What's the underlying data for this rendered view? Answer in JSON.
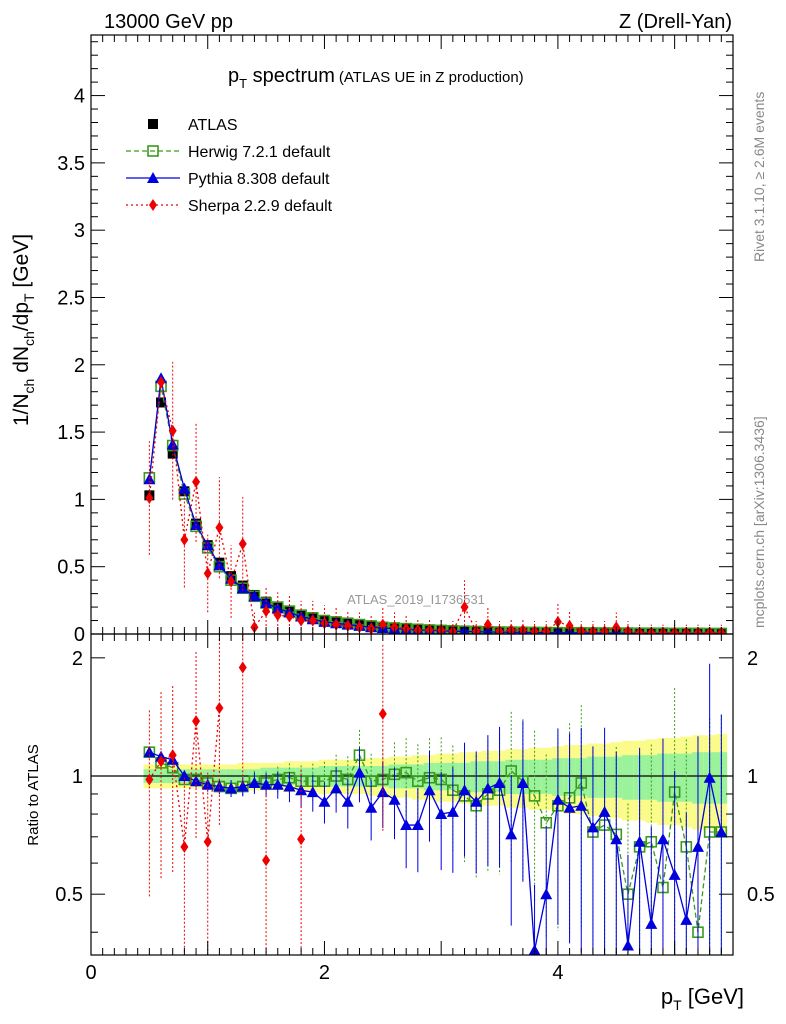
{
  "header": {
    "left": "13000 GeV pp",
    "right": "Z (Drell-Yan)"
  },
  "main_title": {
    "symbol": "p",
    "sub": "T",
    "text": " spectrum",
    "small": "(ATLAS UE in Z production)"
  },
  "side_labels": {
    "rivet": "Rivet 3.1.10, ≥ 2.6M events",
    "mcplots": "mcplots.cern.ch [arXiv:1306.3436]"
  },
  "watermark": "ATLAS_2019_I1736531",
  "colors": {
    "atlas": "#000000",
    "herwig": "#3a9a1e",
    "pythia": "#0000dd",
    "sherpa": "#ee0000",
    "band_inner": "#9af29a",
    "band_outer": "#fbfb8a"
  },
  "chart_data": [
    {
      "type": "scatter",
      "panel": "main",
      "ylabel_parts": [
        "1/N",
        "ch",
        " dN",
        "ch",
        "/dp",
        "T",
        " [GeV]"
      ],
      "xlim": [
        0,
        5.5
      ],
      "ylim": [
        0,
        4.45
      ],
      "yticks": [
        "0",
        "0.5",
        "1",
        "1.5",
        "2",
        "2.5",
        "3",
        "3.5",
        "4"
      ],
      "legend": {
        "placement": "top-left",
        "entries": [
          {
            "key": "atlas",
            "label": "ATLAS"
          },
          {
            "key": "herwig",
            "label": "Herwig 7.2.1 default"
          },
          {
            "key": "pythia",
            "label": "Pythia 8.308 default"
          },
          {
            "key": "sherpa",
            "label": "Sherpa 2.2.9 default"
          }
        ]
      },
      "x": [
        0.5,
        0.6,
        0.7,
        0.8,
        0.9,
        1.0,
        1.1,
        1.2,
        1.3,
        1.4,
        1.5,
        1.6,
        1.7,
        1.8,
        1.9,
        2.0,
        2.1,
        2.2,
        2.3,
        2.4,
        2.5,
        2.6,
        2.7,
        2.8,
        2.9,
        3.0,
        3.1,
        3.2,
        3.3,
        3.4,
        3.5,
        3.6,
        3.7,
        3.8,
        3.9,
        4.0,
        4.1,
        4.2,
        4.3,
        4.4,
        4.5,
        4.6,
        4.7,
        4.8,
        4.9,
        5.0,
        5.1,
        5.2,
        5.3,
        5.4
      ],
      "series": [
        {
          "key": "atlas",
          "name": "ATLAS",
          "marker": "square-filled",
          "values": [
            1.03,
            1.72,
            1.34,
            1.06,
            0.82,
            0.66,
            0.53,
            0.43,
            0.36,
            0.29,
            0.24,
            0.2,
            0.17,
            0.14,
            0.12,
            0.1,
            0.09,
            0.08,
            0.07,
            0.06,
            0.05,
            0.045,
            0.04,
            0.035,
            0.03,
            0.028,
            0.025,
            0.022,
            0.02,
            0.018,
            0.016,
            0.015,
            0.014,
            0.013,
            0.012,
            0.011,
            0.01,
            0.01,
            0.009,
            0.009,
            0.008,
            0.008,
            0.007,
            0.007,
            0.007,
            0.006,
            0.006,
            0.006,
            0.005,
            0.005
          ]
        },
        {
          "key": "herwig",
          "name": "Herwig 7.2.1 default",
          "marker": "square-open",
          "values": [
            1.16,
            1.84,
            1.4,
            1.04,
            0.8,
            0.64,
            0.5,
            0.4,
            0.34,
            0.28,
            0.23,
            0.2,
            0.17,
            0.14,
            0.12,
            0.1,
            0.09,
            0.08,
            0.07,
            0.06,
            0.05,
            0.045,
            0.04,
            0.035,
            0.03,
            0.027,
            0.024,
            0.021,
            0.019,
            0.017,
            0.015,
            0.014,
            0.013,
            0.012,
            0.011,
            0.01,
            0.009,
            0.009,
            0.008,
            0.008,
            0.007,
            0.007,
            0.006,
            0.006,
            0.006,
            0.005,
            0.005,
            0.005,
            0.004,
            0.004
          ]
        },
        {
          "key": "pythia",
          "name": "Pythia 8.308 default",
          "marker": "triangle",
          "values": [
            1.15,
            1.9,
            1.41,
            1.08,
            0.81,
            0.66,
            0.51,
            0.41,
            0.34,
            0.28,
            0.23,
            0.19,
            0.16,
            0.13,
            0.11,
            0.09,
            0.08,
            0.07,
            0.06,
            0.05,
            0.045,
            0.04,
            0.035,
            0.03,
            0.027,
            0.024,
            0.021,
            0.019,
            0.017,
            0.015,
            0.014,
            0.013,
            0.012,
            0.011,
            0.01,
            0.009,
            0.009,
            0.008,
            0.007,
            0.007,
            0.006,
            0.006,
            0.005,
            0.005,
            0.005,
            0.005,
            0.004,
            0.004,
            0.004,
            0.004
          ]
        },
        {
          "key": "sherpa",
          "name": "Sherpa 2.2.9 default",
          "marker": "diamond",
          "values": [
            1.01,
            1.87,
            1.51,
            0.7,
            1.13,
            0.45,
            0.79,
            0.39,
            0.67,
            0.05,
            0.17,
            0.14,
            0.13,
            0.1,
            0.1,
            0.08,
            0.07,
            0.06,
            0.05,
            0.04,
            0.07,
            0.05,
            0.04,
            0.03,
            0.03,
            0.03,
            0.02,
            0.2,
            0.02,
            0.07,
            0.02,
            0.03,
            0.03,
            0.02,
            0.02,
            0.09,
            0.06,
            0.02,
            0.02,
            0.02,
            0.05,
            0.02,
            0.01,
            0.01,
            0.01,
            0.01,
            0.01,
            0.01,
            0.01,
            0.01
          ]
        }
      ]
    },
    {
      "type": "scatter",
      "panel": "ratio",
      "ylabel": "Ratio to ATLAS",
      "xlabel_parts": [
        "p",
        "T",
        " [GeV]"
      ],
      "xlim": [
        0,
        5.5
      ],
      "ylim": [
        0.35,
        2.3
      ],
      "yscale": "log",
      "xticks": [
        "0",
        "2",
        "4"
      ],
      "yticks": [
        "0.5",
        "1",
        "2"
      ],
      "reference_line": 1,
      "series": [
        {
          "key": "herwig",
          "name": "Herwig 7.2.1 default",
          "values": [
            1.15,
            1.08,
            1.05,
            0.98,
            0.98,
            0.96,
            0.94,
            0.93,
            0.94,
            0.97,
            0.96,
            0.98,
            0.99,
            0.97,
            0.97,
            0.97,
            1.0,
            0.98,
            1.13,
            0.97,
            0.98,
            1.01,
            1.02,
            0.97,
            0.99,
            0.98,
            0.92,
            0.89,
            0.84,
            0.9,
            0.92,
            1.03,
            0.97,
            0.89,
            0.76,
            0.84,
            0.88,
            0.96,
            0.72,
            0.75,
            0.71,
            0.5,
            0.66,
            0.68,
            0.52,
            0.91,
            0.66,
            0.4,
            0.72,
            0.72
          ]
        },
        {
          "key": "pythia",
          "name": "Pythia 8.308 default",
          "values": [
            1.15,
            1.12,
            1.1,
            1.0,
            0.97,
            0.95,
            0.94,
            0.93,
            0.94,
            0.96,
            0.95,
            0.95,
            0.94,
            0.92,
            0.91,
            0.86,
            0.93,
            0.86,
            1.02,
            0.83,
            0.91,
            0.87,
            0.75,
            0.75,
            0.92,
            0.8,
            0.81,
            0.92,
            0.86,
            0.93,
            0.96,
            0.71,
            0.96,
            0.36,
            0.5,
            0.87,
            0.83,
            0.84,
            0.74,
            0.81,
            0.69,
            0.37,
            0.68,
            0.42,
            0.69,
            0.56,
            0.43,
            0.66,
            0.99,
            0.72
          ]
        },
        {
          "key": "sherpa",
          "name": "Sherpa 2.2.9 default",
          "values": [
            0.98,
            1.09,
            1.13,
            0.66,
            1.38,
            0.68,
            1.49,
            null,
            1.89,
            null,
            0.61,
            null,
            null,
            0.69,
            null,
            null,
            null,
            null,
            null,
            null,
            1.44,
            null,
            null,
            null,
            null,
            null,
            null,
            null,
            null,
            null,
            null,
            null,
            null,
            null,
            null,
            null,
            null,
            null,
            null,
            null,
            null,
            null,
            null,
            null,
            null,
            null,
            null,
            null,
            null,
            null
          ]
        }
      ],
      "band_inner_halfwidth": [
        0.04,
        0.04,
        0.04,
        0.04,
        0.04,
        0.04,
        0.04,
        0.04,
        0.04,
        0.04,
        0.05,
        0.05,
        0.05,
        0.05,
        0.05,
        0.06,
        0.06,
        0.06,
        0.06,
        0.06,
        0.06,
        0.07,
        0.07,
        0.07,
        0.08,
        0.08,
        0.08,
        0.08,
        0.09,
        0.09,
        0.09,
        0.1,
        0.1,
        0.1,
        0.1,
        0.11,
        0.11,
        0.11,
        0.12,
        0.12,
        0.12,
        0.13,
        0.13,
        0.13,
        0.14,
        0.14,
        0.14,
        0.15,
        0.15,
        0.15
      ],
      "band_outer_halfwidth": [
        0.07,
        0.07,
        0.07,
        0.07,
        0.07,
        0.07,
        0.07,
        0.07,
        0.08,
        0.08,
        0.08,
        0.08,
        0.09,
        0.09,
        0.09,
        0.1,
        0.1,
        0.1,
        0.1,
        0.11,
        0.11,
        0.12,
        0.12,
        0.13,
        0.13,
        0.14,
        0.14,
        0.15,
        0.15,
        0.16,
        0.16,
        0.17,
        0.17,
        0.18,
        0.18,
        0.19,
        0.2,
        0.2,
        0.21,
        0.21,
        0.22,
        0.23,
        0.23,
        0.24,
        0.25,
        0.25,
        0.26,
        0.27,
        0.27,
        0.28
      ]
    }
  ]
}
